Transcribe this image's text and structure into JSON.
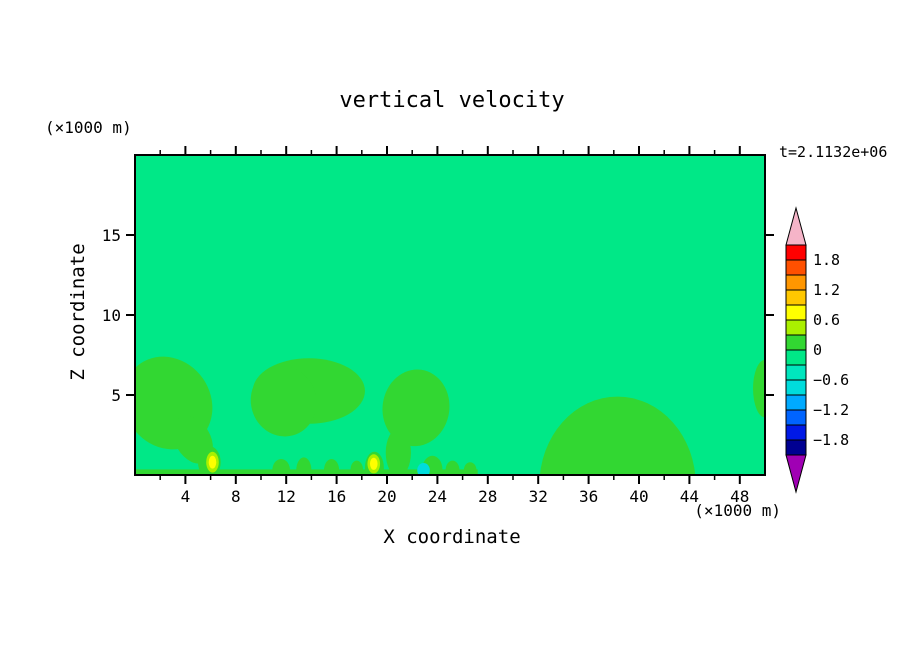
{
  "chart_data": {
    "type": "heatmap",
    "title": "vertical velocity",
    "xlabel": "X coordinate",
    "ylabel": "Z coordinate",
    "x_axis_unit": "(×1000 m)",
    "y_axis_unit": "(×1000 m)",
    "time_annotation": "t=2.1132e+06",
    "xlim": [
      0,
      50
    ],
    "zlim": [
      0,
      20
    ],
    "x_ticks_major": [
      4,
      8,
      12,
      16,
      20,
      24,
      28,
      32,
      36,
      40,
      44,
      48
    ],
    "x_minor_step": 2,
    "y_ticks_major": [
      5,
      10,
      15
    ],
    "grid": false,
    "legend_position": "right-colorbar",
    "colors": {
      "background": "#00e887",
      "page_background": "#ffffff",
      "frame": "#000000"
    },
    "colorbar": {
      "tick_labels": [
        "1.8",
        "1.2",
        "0.6",
        "0",
        "−0.6",
        "−1.2",
        "−1.8"
      ],
      "band_value_step": 0.3,
      "value_range": [
        -2.1,
        2.1
      ],
      "band_colors_top_to_bottom": [
        "#ff0000",
        "#ff5000",
        "#ff9600",
        "#ffc800",
        "#ffff00",
        "#aaf000",
        "#32d732",
        "#00e887",
        "#00e6be",
        "#00dcdc",
        "#00aaff",
        "#0064ff",
        "#0019e6",
        "#000091"
      ],
      "over_range_color": "#f5b4c8",
      "under_range_color": "#a000b4"
    },
    "background_value_band": "-0.3 to 0",
    "features": [
      {
        "shape": "rect",
        "x0": 0,
        "x1": 27.2,
        "z0": 0,
        "z1": 0.35,
        "color": "#32d732",
        "value_band": "0 to 0.3"
      },
      {
        "shape": "ellipse",
        "cx": 2.6,
        "cz": 4.5,
        "rx": 3.4,
        "rz": 3.0,
        "rot": -35,
        "color": "#32d732",
        "value_band": "0 to 0.3"
      },
      {
        "shape": "ellipse",
        "cx": 4.6,
        "cz": 2.2,
        "rx": 1.4,
        "rz": 1.6,
        "rot": -30,
        "color": "#32d732",
        "value_band": "0 to 0.3"
      },
      {
        "shape": "ellipse",
        "cx": 5.9,
        "cz": 0.8,
        "rx": 0.9,
        "rz": 1.0,
        "rot": 0,
        "color": "#32d732",
        "value_band": "0 to 0.3"
      },
      {
        "shape": "ellipse",
        "cx": 13.8,
        "cz": 5.25,
        "rx": 4.45,
        "rz": 2.05,
        "rot": 0,
        "color": "#32d732",
        "value_band": "0 to 0.3"
      },
      {
        "shape": "ellipse",
        "cx": 11.8,
        "cz": 4.6,
        "rx": 2.6,
        "rz": 2.2,
        "rot": -15,
        "color": "#32d732",
        "value_band": "0 to 0.3"
      },
      {
        "shape": "ellipse",
        "cx": 22.3,
        "cz": 4.2,
        "rx": 2.65,
        "rz": 2.4,
        "rot": 8,
        "color": "#32d732",
        "value_band": "0 to 0.3"
      },
      {
        "shape": "ellipse",
        "cx": 20.9,
        "cz": 1.4,
        "rx": 1.0,
        "rz": 1.5,
        "rot": 0,
        "color": "#32d732",
        "value_band": "0 to 0.3"
      },
      {
        "shape": "ellipse",
        "cx": 38.3,
        "cz": -0.6,
        "rx": 6.2,
        "rz": 5.5,
        "rot": 0,
        "color": "#32d732",
        "value_band": "0 to 0.3"
      },
      {
        "shape": "ellipse",
        "cx": 50.0,
        "cz": 5.4,
        "rx": 0.95,
        "rz": 1.8,
        "rot": 0,
        "color": "#32d732",
        "value_band": "0 to 0.3"
      },
      {
        "shape": "ellipse",
        "cx": 11.6,
        "cz": 0.3,
        "rx": 0.7,
        "rz": 0.7,
        "rot": 0,
        "color": "#32d732",
        "value_band": "0 to 0.3"
      },
      {
        "shape": "ellipse",
        "cx": 13.4,
        "cz": 0.3,
        "rx": 0.6,
        "rz": 0.8,
        "rot": 0,
        "color": "#32d732",
        "value_band": "0 to 0.3"
      },
      {
        "shape": "ellipse",
        "cx": 15.6,
        "cz": 0.3,
        "rx": 0.6,
        "rz": 0.7,
        "rot": 0,
        "color": "#32d732",
        "value_band": "0 to 0.3"
      },
      {
        "shape": "ellipse",
        "cx": 17.6,
        "cz": 0.3,
        "rx": 0.5,
        "rz": 0.6,
        "rot": 0,
        "color": "#32d732",
        "value_band": "0 to 0.3"
      },
      {
        "shape": "ellipse",
        "cx": 19.0,
        "cz": 0.45,
        "rx": 0.75,
        "rz": 1.0,
        "rot": 0,
        "color": "#32d732",
        "value_band": "0 to 0.3"
      },
      {
        "shape": "ellipse",
        "cx": 23.6,
        "cz": 0.35,
        "rx": 0.8,
        "rz": 0.85,
        "rot": 0,
        "color": "#32d732",
        "value_band": "0 to 0.3"
      },
      {
        "shape": "ellipse",
        "cx": 25.2,
        "cz": 0.3,
        "rx": 0.55,
        "rz": 0.6,
        "rot": 0,
        "color": "#32d732",
        "value_band": "0 to 0.3"
      },
      {
        "shape": "ellipse",
        "cx": 26.6,
        "cz": 0.3,
        "rx": 0.5,
        "rz": 0.5,
        "rot": 0,
        "color": "#32d732",
        "value_band": "0 to 0.3"
      },
      {
        "shape": "ellipse",
        "cx": 6.15,
        "cz": 0.8,
        "rx": 0.5,
        "rz": 0.65,
        "rot": 0,
        "color": "#aaf000",
        "value_band": "0.3 to 0.6"
      },
      {
        "shape": "ellipse",
        "cx": 6.15,
        "cz": 0.8,
        "rx": 0.3,
        "rz": 0.4,
        "rot": 0,
        "color": "#ffff00",
        "value_band": "0.6 to 0.9"
      },
      {
        "shape": "ellipse",
        "cx": 18.95,
        "cz": 0.7,
        "rx": 0.5,
        "rz": 0.6,
        "rot": 0,
        "color": "#aaf000",
        "value_band": "0.3 to 0.6"
      },
      {
        "shape": "ellipse",
        "cx": 18.95,
        "cz": 0.7,
        "rx": 0.3,
        "rz": 0.38,
        "rot": 0,
        "color": "#ffff00",
        "value_band": "0.6 to 0.9"
      },
      {
        "shape": "ellipse",
        "cx": 22.9,
        "cz": 0.3,
        "rx": 0.5,
        "rz": 0.45,
        "rot": 0,
        "color": "#00dcdc",
        "value_band": "-0.9 to -0.6"
      }
    ]
  }
}
